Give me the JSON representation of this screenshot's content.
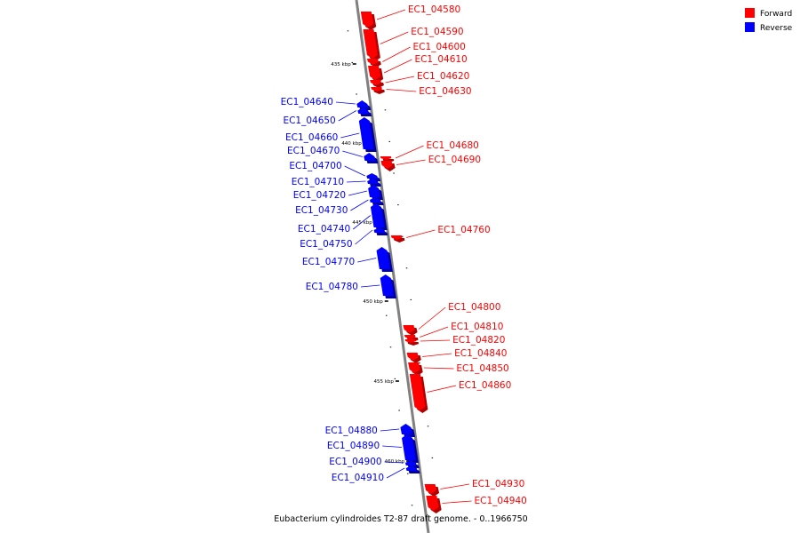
{
  "caption": "Eubacterium cylindroides T2-87 draft genome. - 0..1966750",
  "legend": [
    {
      "label": "Forward",
      "color": "#ff0000"
    },
    {
      "label": "Reverse",
      "color": "#0000ff"
    }
  ],
  "colors": {
    "forward": "#ff0000",
    "reverse": "#0000ff",
    "backbone": "#808080"
  },
  "chart_data": {
    "type": "genome-map",
    "ticks": [
      {
        "label": "435 kbp",
        "kbp": 435
      },
      {
        "label": "440 kbp",
        "kbp": 440
      },
      {
        "label": "445 kbp",
        "kbp": 445
      },
      {
        "label": "450 kbp",
        "kbp": 450
      },
      {
        "label": "455 kbp",
        "kbp": 455
      },
      {
        "label": "460 kbp",
        "kbp": 460
      }
    ],
    "genes": [
      {
        "name": "EC1_04580",
        "strand": "forward"
      },
      {
        "name": "EC1_04590",
        "strand": "forward"
      },
      {
        "name": "EC1_04600",
        "strand": "forward"
      },
      {
        "name": "EC1_04610",
        "strand": "forward"
      },
      {
        "name": "EC1_04620",
        "strand": "forward"
      },
      {
        "name": "EC1_04630",
        "strand": "forward"
      },
      {
        "name": "EC1_04640",
        "strand": "reverse"
      },
      {
        "name": "EC1_04650",
        "strand": "reverse"
      },
      {
        "name": "EC1_04660",
        "strand": "reverse"
      },
      {
        "name": "EC1_04670",
        "strand": "reverse"
      },
      {
        "name": "EC1_04680",
        "strand": "forward"
      },
      {
        "name": "EC1_04690",
        "strand": "forward"
      },
      {
        "name": "EC1_04700",
        "strand": "reverse"
      },
      {
        "name": "EC1_04710",
        "strand": "reverse"
      },
      {
        "name": "EC1_04720",
        "strand": "reverse"
      },
      {
        "name": "EC1_04730",
        "strand": "reverse"
      },
      {
        "name": "EC1_04740",
        "strand": "reverse"
      },
      {
        "name": "EC1_04750",
        "strand": "reverse"
      },
      {
        "name": "EC1_04760",
        "strand": "forward"
      },
      {
        "name": "EC1_04770",
        "strand": "reverse"
      },
      {
        "name": "EC1_04780",
        "strand": "reverse"
      },
      {
        "name": "EC1_04800",
        "strand": "forward"
      },
      {
        "name": "EC1_04810",
        "strand": "forward"
      },
      {
        "name": "EC1_04820",
        "strand": "forward"
      },
      {
        "name": "EC1_04840",
        "strand": "forward"
      },
      {
        "name": "EC1_04850",
        "strand": "forward"
      },
      {
        "name": "EC1_04860",
        "strand": "forward"
      },
      {
        "name": "EC1_04880",
        "strand": "reverse"
      },
      {
        "name": "EC1_04890",
        "strand": "reverse"
      },
      {
        "name": "EC1_04900",
        "strand": "reverse"
      },
      {
        "name": "EC1_04910",
        "strand": "reverse"
      },
      {
        "name": "EC1_04930",
        "strand": "forward"
      },
      {
        "name": "EC1_04940",
        "strand": "forward"
      }
    ]
  }
}
